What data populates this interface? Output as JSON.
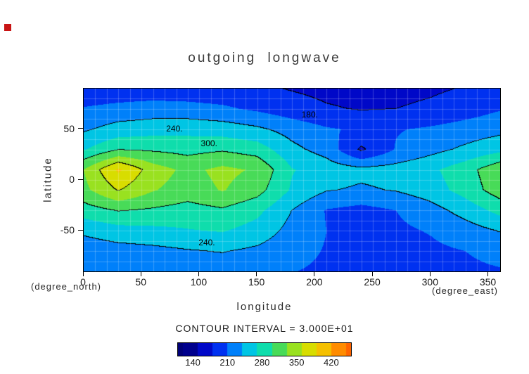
{
  "title": "outgoing longwave",
  "axes": {
    "x_label": "longitude",
    "y_label": "latitude",
    "x_unit": "(degree_east)",
    "y_unit": "(degree_north)",
    "x_ticks": [
      0,
      50,
      100,
      150,
      200,
      250,
      300,
      350
    ],
    "y_ticks": [
      50,
      0,
      -50
    ]
  },
  "labels": {
    "contour_interval": "CONTOUR INTERVAL = 3.000E+01"
  },
  "contour_labels": [
    {
      "text": "180.",
      "lon": 196,
      "lat": 64
    },
    {
      "text": "240.",
      "lon": 79,
      "lat": 50
    },
    {
      "text": "300.",
      "lon": 109,
      "lat": 35
    },
    {
      "text": "240.",
      "lon": 107,
      "lat": -62
    }
  ],
  "colorbar": {
    "ticks": [
      140,
      210,
      280,
      350,
      420
    ],
    "vmin": 110,
    "vmax": 460
  },
  "colormap": [
    {
      "v": 125,
      "c": "#000078"
    },
    {
      "v": 155,
      "c": "#0000b8"
    },
    {
      "v": 185,
      "c": "#0018e8"
    },
    {
      "v": 215,
      "c": "#0064ff"
    },
    {
      "v": 245,
      "c": "#00b8f0"
    },
    {
      "v": 275,
      "c": "#00e0cc"
    },
    {
      "v": 305,
      "c": "#2cd86c"
    },
    {
      "v": 335,
      "c": "#80e030"
    },
    {
      "v": 365,
      "c": "#cce400"
    },
    {
      "v": 395,
      "c": "#f0d000"
    },
    {
      "v": 425,
      "c": "#ffa000"
    },
    {
      "v": 455,
      "c": "#ff6400"
    }
  ],
  "chart_data": {
    "type": "heatmap",
    "subtype": "filled-contour",
    "title": "outgoing longwave",
    "xlabel": "longitude",
    "ylabel": "latitude",
    "x_range": [
      0,
      360
    ],
    "y_range": [
      -90,
      90
    ],
    "contour_interval": 30,
    "line_levels": [
      180,
      240,
      300,
      360
    ],
    "lon": [
      0,
      30,
      60,
      90,
      120,
      150,
      180,
      210,
      240,
      270,
      300,
      330,
      360
    ],
    "lat": [
      90,
      70,
      50,
      30,
      10,
      -10,
      -30,
      -50,
      -70,
      -90
    ],
    "values": [
      [
        190,
        192,
        193,
        192,
        190,
        185,
        178,
        172,
        168,
        170,
        175,
        182,
        190
      ],
      [
        212,
        218,
        222,
        220,
        215,
        205,
        193,
        183,
        178,
        180,
        186,
        196,
        208
      ],
      [
        235,
        252,
        258,
        260,
        255,
        245,
        228,
        213,
        206,
        208,
        214,
        222,
        230
      ],
      [
        268,
        298,
        295,
        290,
        296,
        286,
        248,
        228,
        175,
        212,
        230,
        246,
        262
      ],
      [
        330,
        395,
        345,
        322,
        338,
        326,
        272,
        256,
        248,
        252,
        264,
        288,
        322
      ],
      [
        322,
        362,
        332,
        316,
        332,
        312,
        266,
        242,
        236,
        242,
        256,
        282,
        316
      ],
      [
        286,
        302,
        296,
        288,
        296,
        278,
        240,
        208,
        200,
        210,
        228,
        252,
        280
      ],
      [
        246,
        258,
        262,
        268,
        272,
        258,
        230,
        210,
        203,
        204,
        212,
        226,
        242
      ],
      [
        222,
        228,
        232,
        238,
        242,
        234,
        220,
        208,
        202,
        201,
        204,
        210,
        218
      ],
      [
        210,
        212,
        215,
        218,
        220,
        217,
        211,
        205,
        201,
        200,
        202,
        205,
        208
      ]
    ]
  }
}
